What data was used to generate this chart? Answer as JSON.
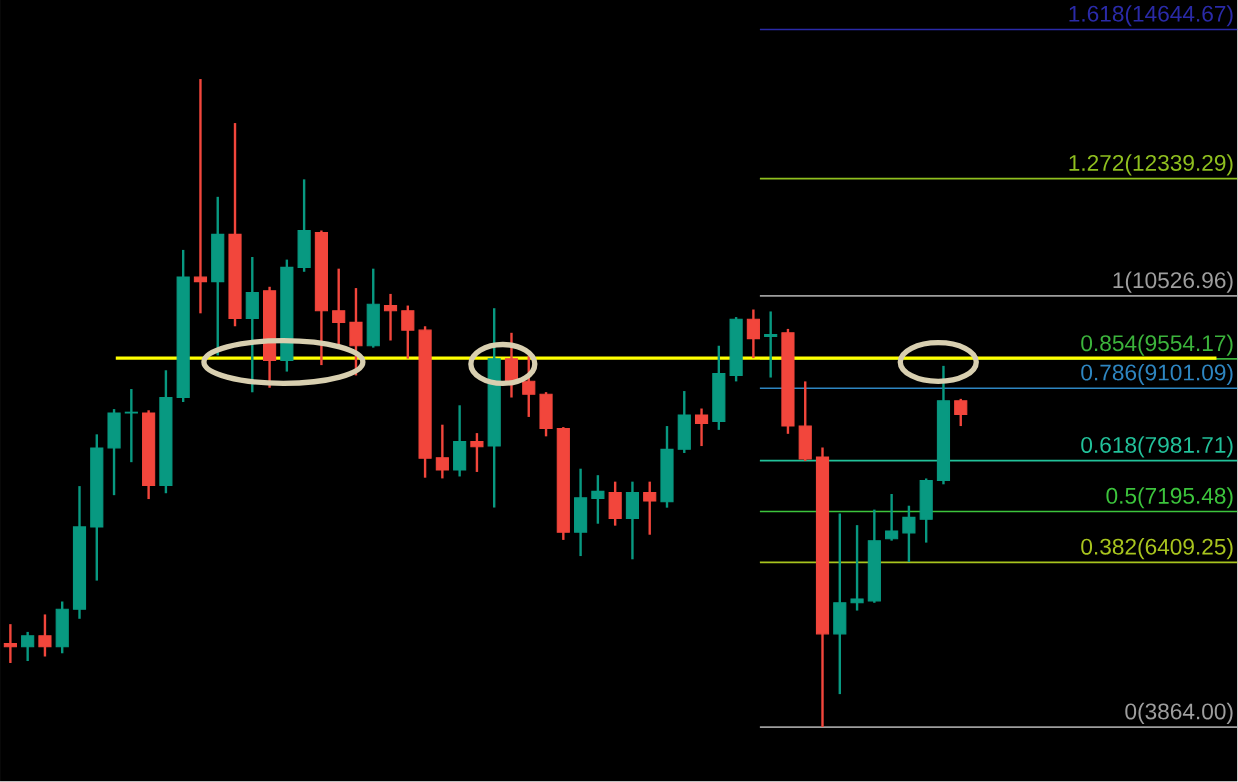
{
  "chart_data": {
    "type": "candlestick",
    "categories": [
      null,
      null,
      null,
      null,
      null,
      null,
      null,
      null,
      null,
      null,
      null,
      null,
      null,
      null,
      null,
      null,
      null,
      null,
      null,
      null,
      null,
      null,
      null,
      null,
      null,
      null,
      null,
      null,
      null,
      null,
      null,
      null,
      null,
      null,
      null,
      null,
      null,
      null,
      null,
      null,
      null,
      null,
      null,
      null,
      null,
      null,
      null,
      null,
      null,
      null,
      null,
      null,
      null,
      null,
      null,
      null
    ],
    "ohlc": [
      [
        5155,
        5455,
        4855,
        5105
      ],
      [
        5105,
        5335,
        4885,
        5275
      ],
      [
        5275,
        5605,
        4955,
        5105
      ],
      [
        5105,
        5805,
        5005,
        5685
      ],
      [
        5685,
        7588,
        5538,
        6958
      ],
      [
        6958,
        8388,
        6128,
        8178
      ],
      [
        8178,
        8778,
        7448,
        8718
      ],
      [
        8718,
        9088,
        7958,
        8730
      ],
      [
        8718,
        8760,
        7388,
        7598
      ],
      [
        7598,
        9378,
        7478,
        8958
      ],
      [
        8958,
        11238,
        8888,
        10818
      ],
      [
        10818,
        13878,
        10258,
        10748
      ],
      [
        10748,
        12058,
        9608,
        11478
      ],
      [
        11478,
        13198,
        10058,
        10178
      ],
      [
        10178,
        11128,
        9038,
        10578
      ],
      [
        10608,
        10668,
        9108,
        9528
      ],
      [
        9528,
        11088,
        9358,
        10968
      ],
      [
        10968,
        12328,
        10900,
        11538
      ],
      [
        11508,
        11538,
        9458,
        10298
      ],
      [
        10298,
        10948,
        9738,
        10118
      ],
      [
        10118,
        10648,
        9298,
        9758
      ],
      [
        9758,
        10948,
        9728,
        10398
      ],
      [
        10378,
        10558,
        9838,
        10298
      ],
      [
        10298,
        10378,
        9558,
        9998
      ],
      [
        9998,
        10058,
        7718,
        8018
      ],
      [
        8027,
        8537,
        7707,
        7837
      ],
      [
        7837,
        8837,
        7737,
        8277
      ],
      [
        8277,
        8407,
        7807,
        8197
      ],
      [
        8207,
        10337,
        7257,
        9557
      ],
      [
        9557,
        9957,
        8957,
        9207
      ],
      [
        9207,
        9607,
        8657,
        9007
      ],
      [
        9007,
        9040,
        8357,
        8477
      ],
      [
        8477,
        8500,
        6757,
        6877
      ],
      [
        6877,
        7857,
        6507,
        7407
      ],
      [
        7397,
        7757,
        7007,
        7507
      ],
      [
        7487,
        7657,
        6977,
        7087
      ],
      [
        7087,
        7657,
        6457,
        7487
      ],
      [
        7487,
        7657,
        6837,
        7357
      ],
      [
        7345,
        8516,
        7255,
        8156
      ],
      [
        8157,
        9057,
        8100,
        8687
      ],
      [
        8687,
        8787,
        8207,
        8557
      ],
      [
        8587,
        9757,
        8457,
        9327
      ],
      [
        9296,
        10200,
        9206,
        10167
      ],
      [
        10167,
        10317,
        9566,
        9867
      ],
      [
        9900,
        10287,
        9266,
        9930
      ],
      [
        9957,
        10017,
        8396,
        8516
      ],
      [
        8516,
        9206,
        7976,
        8006
      ],
      [
        8036,
        8186,
        3864,
        5305
      ],
      [
        5305,
        7165,
        4374,
        5785
      ],
      [
        5785,
        6985,
        5665,
        5845
      ],
      [
        5815,
        7225,
        5785,
        6745
      ],
      [
        6775,
        7466,
        6745,
        6895
      ],
      [
        6865,
        7285,
        6415,
        7105
      ],
      [
        7075,
        7706,
        6715,
        7676
      ],
      [
        7676,
        9446,
        7616,
        8906
      ],
      [
        8906,
        8936,
        8516,
        8696
      ]
    ],
    "ylim": [
      3024,
      15100
    ],
    "ref_lines": [
      {
        "axis": "y",
        "value": 14644.67,
        "label": "1.618(14644.67)",
        "color": "#2a2aa8"
      },
      {
        "axis": "y",
        "value": 12339.29,
        "label": "1.272(12339.29)",
        "color": "#8fbf1f"
      },
      {
        "axis": "y",
        "value": 10526.96,
        "label": "1(10526.96)",
        "color": "#9e9e9e"
      },
      {
        "axis": "y",
        "value": 9554.17,
        "label": "0.854(9554.17)",
        "color": "#3cb43c"
      },
      {
        "axis": "y",
        "value": 9101.09,
        "label": "0.786(9101.09)",
        "color": "#2e86c1"
      },
      {
        "axis": "y",
        "value": 7981.71,
        "label": "0.618(7981.71)",
        "color": "#22c19a"
      },
      {
        "axis": "y",
        "value": 7195.48,
        "label": "0.5(7195.48)",
        "color": "#3cc43c"
      },
      {
        "axis": "y",
        "value": 6409.25,
        "label": "0.382(6409.25)",
        "color": "#a8c41e"
      },
      {
        "axis": "y",
        "value": 3864.0,
        "label": "0(3864.00)",
        "color": "#9e9e9e"
      },
      {
        "axis": "y",
        "value": 9566,
        "color": "#ffff00"
      }
    ]
  }
}
